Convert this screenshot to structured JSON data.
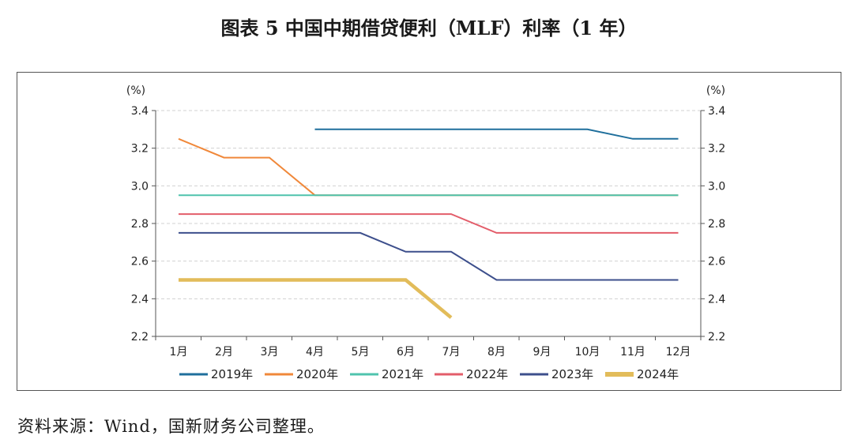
{
  "title": "图表 5  中国中期借贷便利（MLF）利率（1 年）",
  "source": "资料来源：Wind，国新财务公司整理。",
  "chart_data": {
    "type": "line",
    "title": "图表 5  中国中期借贷便利（MLF）利率（1 年）",
    "xlabel": "",
    "ylabel": "(%)",
    "ylabel_right": "(%)",
    "ylim": [
      2.2,
      3.4
    ],
    "yticks": [
      "2.2",
      "2.4",
      "2.6",
      "2.8",
      "3.0",
      "3.2",
      "3.4"
    ],
    "categories": [
      "1月",
      "2月",
      "3月",
      "4月",
      "5月",
      "6月",
      "7月",
      "8月",
      "9月",
      "10月",
      "11月",
      "12月"
    ],
    "grid": "horizontal-dashed",
    "legend_position": "bottom",
    "series": [
      {
        "name": "2019年",
        "color": "#1f6f9c",
        "width": 2,
        "values": [
          null,
          null,
          null,
          3.3,
          3.3,
          3.3,
          3.3,
          3.3,
          3.3,
          3.3,
          3.25,
          3.25
        ]
      },
      {
        "name": "2020年",
        "color": "#f0883a",
        "width": 2,
        "values": [
          3.25,
          3.15,
          3.15,
          2.95,
          2.95,
          2.95,
          2.95,
          2.95,
          2.95,
          2.95,
          2.95,
          2.95
        ]
      },
      {
        "name": "2021年",
        "color": "#4fc3ad",
        "width": 2,
        "values": [
          2.95,
          2.95,
          2.95,
          2.95,
          2.95,
          2.95,
          2.95,
          2.95,
          2.95,
          2.95,
          2.95,
          2.95
        ]
      },
      {
        "name": "2022年",
        "color": "#e35d6a",
        "width": 2,
        "values": [
          2.85,
          2.85,
          2.85,
          2.85,
          2.85,
          2.85,
          2.85,
          2.75,
          2.75,
          2.75,
          2.75,
          2.75
        ]
      },
      {
        "name": "2023年",
        "color": "#3d4f8c",
        "width": 2,
        "values": [
          2.75,
          2.75,
          2.75,
          2.75,
          2.75,
          2.65,
          2.65,
          2.5,
          2.5,
          2.5,
          2.5,
          2.5
        ]
      },
      {
        "name": "2024年",
        "color": "#e2bc5a",
        "width": 4.5,
        "values": [
          2.5,
          2.5,
          2.5,
          2.5,
          2.5,
          2.5,
          2.3,
          null,
          null,
          null,
          null,
          null
        ]
      }
    ]
  }
}
